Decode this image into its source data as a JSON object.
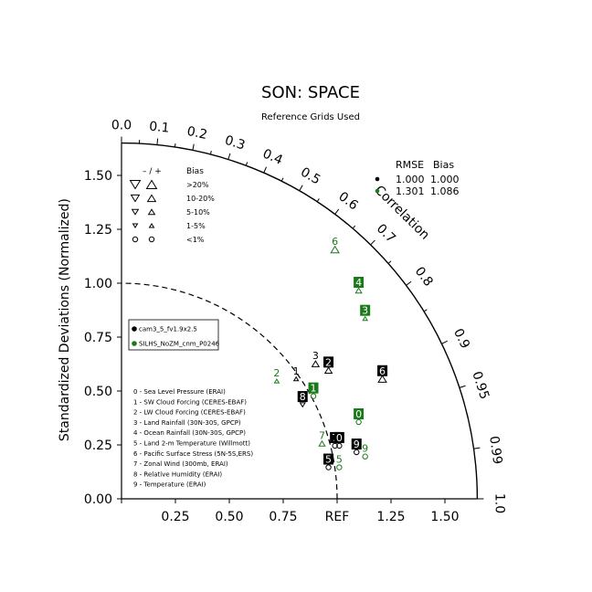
{
  "chart_data": {
    "type": "scatter",
    "subtype": "taylor-diagram",
    "title": "SON: SPACE",
    "subtitle": "Reference Grids Used",
    "ylabel": "Standardized Deviations (Normalized)",
    "corr_label": "Correlation",
    "ref_label": "REF",
    "xlim": [
      0,
      1.65
    ],
    "ylim": [
      0,
      1.65
    ],
    "x_ticks": [
      "0.00",
      "0.25",
      "0.50",
      "0.75",
      "REF",
      "1.25",
      "1.50"
    ],
    "x_tick_values": [
      0,
      0.25,
      0.5,
      0.75,
      1.0,
      1.25,
      1.5
    ],
    "y_ticks": [
      "0.00",
      "0.25",
      "0.50",
      "0.75",
      "1.00",
      "1.25",
      "1.50"
    ],
    "y_tick_values": [
      0,
      0.25,
      0.5,
      0.75,
      1.0,
      1.25,
      1.5
    ],
    "corr_ticks": [
      "0.0",
      "0.1",
      "0.2",
      "0.3",
      "0.4",
      "0.5",
      "0.6",
      "0.7",
      "0.8",
      "0.9",
      "0.95",
      "0.99",
      "1.0"
    ],
    "corr_tick_values": [
      0,
      0.1,
      0.2,
      0.3,
      0.4,
      0.5,
      0.6,
      0.7,
      0.8,
      0.9,
      0.95,
      0.99,
      1.0
    ],
    "bias_legend": {
      "header_sym": "– / +",
      "header": "Bias",
      "rows": [
        {
          "label": ">20%",
          "shape": "triangle",
          "size": 1.0
        },
        {
          "label": "10-20%",
          "shape": "triangle",
          "size": 0.8
        },
        {
          "label": "5-10%",
          "shape": "triangle",
          "size": 0.62
        },
        {
          "label": "1-5%",
          "shape": "triangle",
          "size": 0.45
        },
        {
          "label": "<1%",
          "shape": "circle",
          "size": 0.6
        }
      ]
    },
    "rmse_table": {
      "headers": [
        "RMSE",
        "Bias"
      ],
      "rows": [
        {
          "rmse": "1.000",
          "bias": "1.000",
          "color": "#000000"
        },
        {
          "rmse": "1.301",
          "bias": "1.086",
          "color": "#1a7a1a"
        }
      ]
    },
    "series": [
      {
        "name": "cam3_5_fv1.9x2.5",
        "color": "#000000"
      },
      {
        "name": "SILHS_NoZM_cnm_P0246",
        "color": "#1a7a1a"
      }
    ],
    "variables": [
      "0 - Sea Level Pressure (ERAI)",
      "1 - SW Cloud Forcing (CERES-EBAF)",
      "2 - LW Cloud Forcing (CERES-EBAF)",
      "3 - Land Rainfall (30N-30S, GPCP)",
      "4 - Ocean Rainfall (30N-30S, GPCP)",
      "5 - Land 2-m Temperature (Willmott)",
      "6 - Pacific Surface Stress (5N-5S,ERS)",
      "7 - Zonal Wind (300mb, ERAI)",
      "8 - Relative Humidity (ERAI)",
      "9 - Temperature (ERAI)"
    ],
    "points": [
      {
        "series": 0,
        "id": "2",
        "x": 0.96,
        "y": 0.63,
        "boxed": true,
        "marker": "up",
        "msize": 0.7
      },
      {
        "series": 0,
        "id": "3",
        "x": 0.9,
        "y": 0.66,
        "boxed": false,
        "marker": "up",
        "msize": 0.7
      },
      {
        "series": 0,
        "id": "1",
        "x": 0.81,
        "y": 0.59,
        "boxed": false,
        "marker": "up",
        "msize": 0.45
      },
      {
        "series": 0,
        "id": "8",
        "x": 0.84,
        "y": 0.47,
        "boxed": true,
        "marker": "down",
        "msize": 0.5
      },
      {
        "series": 0,
        "id": "6",
        "x": 1.21,
        "y": 0.59,
        "boxed": true,
        "marker": "up",
        "msize": 0.8
      },
      {
        "series": 0,
        "id": "7",
        "x": 0.99,
        "y": 0.28,
        "boxed": true,
        "marker": "circle",
        "msize": 0.6
      },
      {
        "series": 0,
        "id": "0",
        "x": 1.01,
        "y": 0.28,
        "boxed": true,
        "marker": "circle",
        "msize": 0.6
      },
      {
        "series": 0,
        "id": "9",
        "x": 1.09,
        "y": 0.25,
        "boxed": true,
        "marker": "circle",
        "msize": 0.6
      },
      {
        "series": 0,
        "id": "5",
        "x": 0.96,
        "y": 0.18,
        "boxed": true,
        "marker": "circle",
        "msize": 0.6
      },
      {
        "series": 1,
        "id": "6",
        "x": 0.99,
        "y": 1.19,
        "boxed": false,
        "marker": "up",
        "msize": 0.8
      },
      {
        "series": 1,
        "id": "4",
        "x": 1.1,
        "y": 1.0,
        "boxed": true,
        "marker": "up",
        "msize": 0.6
      },
      {
        "series": 1,
        "id": "3",
        "x": 1.13,
        "y": 0.87,
        "boxed": true,
        "marker": "up",
        "msize": 0.45
      },
      {
        "series": 1,
        "id": "2",
        "x": 0.72,
        "y": 0.58,
        "boxed": false,
        "marker": "up",
        "msize": 0.45
      },
      {
        "series": 1,
        "id": "1",
        "x": 0.89,
        "y": 0.51,
        "boxed": true,
        "marker": "circle",
        "msize": 0.6
      },
      {
        "series": 1,
        "id": "0",
        "x": 1.1,
        "y": 0.39,
        "boxed": true,
        "marker": "circle",
        "msize": 0.6
      },
      {
        "series": 1,
        "id": "7",
        "x": 0.93,
        "y": 0.29,
        "boxed": false,
        "marker": "up",
        "msize": 0.6
      },
      {
        "series": 1,
        "id": "9",
        "x": 1.13,
        "y": 0.23,
        "boxed": false,
        "marker": "circle",
        "msize": 0.6
      },
      {
        "series": 1,
        "id": "5",
        "x": 1.01,
        "y": 0.18,
        "boxed": false,
        "marker": "circle",
        "msize": 0.6
      }
    ]
  }
}
